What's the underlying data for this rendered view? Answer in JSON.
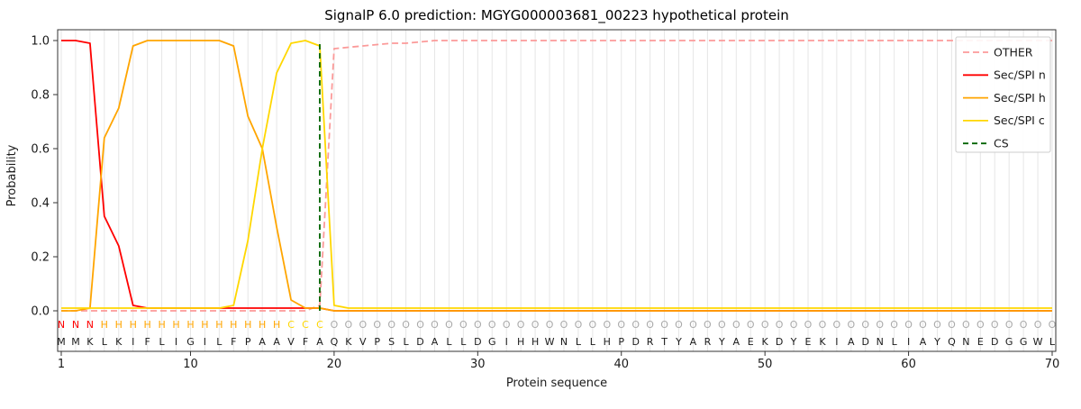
{
  "figure": {
    "title": "SignalP 6.0 prediction: MGYG000003681_00223 hypothetical protein",
    "xlabel": "Protein sequence",
    "ylabel": "Probability"
  },
  "chart_data": {
    "type": "line",
    "title": "SignalP 6.0 prediction: MGYG000003681_00223 hypothetical protein",
    "xlabel": "Protein sequence",
    "ylabel": "Probability",
    "xlim": [
      0,
      71
    ],
    "ylim": [
      -0.15,
      1.05
    ],
    "x_ticks": [
      1,
      10,
      20,
      30,
      40,
      50,
      60,
      70
    ],
    "y_ticks": [
      "0.0",
      "0.2",
      "0.4",
      "0.6",
      "0.8",
      "1.0"
    ],
    "grid": {
      "vertical_per_residue": true,
      "color": "#e6e6e6"
    },
    "legend_position": "upper right",
    "sequence": "MMKLKIFLIGILFPAAVFAQKVPSLDALLDGIHHWNLLHPDRTYARYAEKDYEKIADNLIAYQNEDGGWL",
    "region_labels": "NNNHHHHHHHHHHHHHCCCOOOOOOOOOOOOOOOOOOOOOOOOOOOOOOOOOOOOOOOOOOOOOOOOOO",
    "region_colors": {
      "N": "#ff0000",
      "H": "#ffa500",
      "C": "#ffd700",
      "O": "#aaaaaa"
    },
    "cs": {
      "label": "CS",
      "x": 19,
      "color": "#006400",
      "dash": "6,4"
    },
    "series": [
      {
        "name": "OTHER",
        "color": "#fb9a99",
        "dash": "7,4",
        "values": [
          0,
          0,
          0,
          0,
          0,
          0,
          0,
          0,
          0,
          0,
          0,
          0,
          0,
          0,
          0,
          0,
          0,
          0,
          0.02,
          0.97,
          0.975,
          0.98,
          0.985,
          0.99,
          0.99,
          0.995,
          1,
          1,
          1,
          1,
          1,
          1,
          1,
          1,
          1,
          1,
          1,
          1,
          1,
          1,
          1,
          1,
          1,
          1,
          1,
          1,
          1,
          1,
          1,
          1,
          1,
          1,
          1,
          1,
          1,
          1,
          1,
          1,
          1,
          1,
          1,
          1,
          1,
          1,
          1,
          1,
          1,
          1,
          1,
          1
        ]
      },
      {
        "name": "Sec/SPI n",
        "color": "#ff0000",
        "dash": "",
        "values": [
          1,
          1,
          0.99,
          0.35,
          0.24,
          0.02,
          0.01,
          0.01,
          0.01,
          0.01,
          0.01,
          0.01,
          0.01,
          0.01,
          0.01,
          0.01,
          0.01,
          0.01,
          0.01,
          0,
          0,
          0,
          0,
          0,
          0,
          0,
          0,
          0,
          0,
          0,
          0,
          0,
          0,
          0,
          0,
          0,
          0,
          0,
          0,
          0,
          0,
          0,
          0,
          0,
          0,
          0,
          0,
          0,
          0,
          0,
          0,
          0,
          0,
          0,
          0,
          0,
          0,
          0,
          0,
          0,
          0,
          0,
          0,
          0,
          0,
          0,
          0,
          0,
          0,
          0
        ]
      },
      {
        "name": "Sec/SPI h",
        "color": "#ffa500",
        "dash": "",
        "values": [
          0,
          0,
          0.01,
          0.64,
          0.75,
          0.98,
          1,
          1,
          1,
          1,
          1,
          1,
          0.98,
          0.72,
          0.6,
          0.31,
          0.04,
          0.01,
          0.01,
          0,
          0,
          0,
          0,
          0,
          0,
          0,
          0,
          0,
          0,
          0,
          0,
          0,
          0,
          0,
          0,
          0,
          0,
          0,
          0,
          0,
          0,
          0,
          0,
          0,
          0,
          0,
          0,
          0,
          0,
          0,
          0,
          0,
          0,
          0,
          0,
          0,
          0,
          0,
          0,
          0,
          0,
          0,
          0,
          0,
          0,
          0,
          0,
          0,
          0,
          0
        ]
      },
      {
        "name": "Sec/SPI c",
        "color": "#ffd700",
        "dash": "",
        "values": [
          0.01,
          0.01,
          0.01,
          0.01,
          0.01,
          0.01,
          0.01,
          0.01,
          0.01,
          0.01,
          0.01,
          0.01,
          0.02,
          0.26,
          0.6,
          0.88,
          0.99,
          1,
          0.98,
          0.02,
          0.01,
          0.01,
          0.01,
          0.01,
          0.01,
          0.01,
          0.01,
          0.01,
          0.01,
          0.01,
          0.01,
          0.01,
          0.01,
          0.01,
          0.01,
          0.01,
          0.01,
          0.01,
          0.01,
          0.01,
          0.01,
          0.01,
          0.01,
          0.01,
          0.01,
          0.01,
          0.01,
          0.01,
          0.01,
          0.01,
          0.01,
          0.01,
          0.01,
          0.01,
          0.01,
          0.01,
          0.01,
          0.01,
          0.01,
          0.01,
          0.01,
          0.01,
          0.01,
          0.01,
          0.01,
          0.01,
          0.01,
          0.01,
          0.01,
          0.01
        ]
      }
    ],
    "legend": [
      {
        "label": "OTHER",
        "color": "#fb9a99",
        "dash": "7,4"
      },
      {
        "label": "Sec/SPI n",
        "color": "#ff0000",
        "dash": ""
      },
      {
        "label": "Sec/SPI h",
        "color": "#ffa500",
        "dash": ""
      },
      {
        "label": "Sec/SPI c",
        "color": "#ffd700",
        "dash": ""
      },
      {
        "label": "CS",
        "color": "#006400",
        "dash": "6,4"
      }
    ]
  }
}
